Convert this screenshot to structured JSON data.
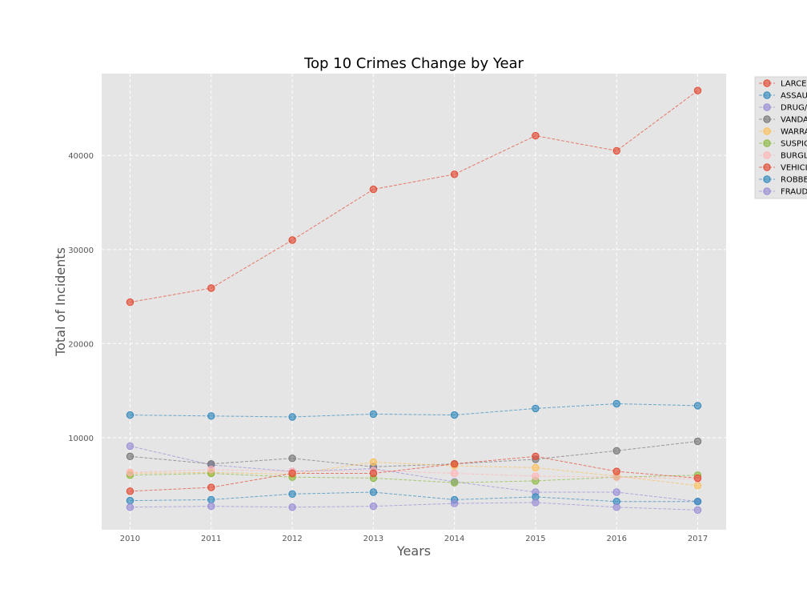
{
  "chart_data": {
    "type": "line",
    "title": "Top 10 Crimes Change by Year",
    "xlabel": "Years",
    "ylabel": "Total of Incidents",
    "x": [
      2010,
      2011,
      2012,
      2013,
      2014,
      2015,
      2016,
      2017
    ],
    "xlim": [
      2009.65,
      2017.35
    ],
    "ylim": [
      200,
      48700
    ],
    "yticks": [
      10000,
      20000,
      30000,
      40000
    ],
    "grid": true,
    "legend_position": "outside-right",
    "series": [
      {
        "name": "LARCE",
        "color": "#e24a33",
        "values": [
          24400,
          25900,
          31000,
          36400,
          38000,
          42100,
          40500,
          46900
        ]
      },
      {
        "name": "ASSAU",
        "color": "#348abd",
        "values": [
          12400,
          12300,
          12200,
          12500,
          12400,
          13100,
          13600,
          13400
        ]
      },
      {
        "name": "DRUG/",
        "color": "#988ed5",
        "values": [
          9100,
          7100,
          6400,
          6700,
          5300,
          4200,
          4200,
          3200
        ]
      },
      {
        "name": "VANDA",
        "color": "#777777",
        "values": [
          8000,
          7200,
          7800,
          6900,
          7200,
          7700,
          8600,
          9600
        ]
      },
      {
        "name": "WARRA",
        "color": "#fbc15e",
        "values": [
          6200,
          6300,
          6100,
          7400,
          7000,
          6800,
          5900,
          4900
        ]
      },
      {
        "name": "SUSPIC",
        "color": "#8eba42",
        "values": [
          6000,
          6200,
          5800,
          5700,
          5200,
          5400,
          5800,
          6000
        ]
      },
      {
        "name": "BURGL",
        "color": "#ffb5b8",
        "values": [
          6300,
          6600,
          6400,
          6500,
          6200,
          5900,
          5800,
          5600
        ]
      },
      {
        "name": "VEHICL",
        "color": "#e24a33",
        "values": [
          4300,
          4700,
          6200,
          6200,
          7200,
          8000,
          6400,
          5700
        ]
      },
      {
        "name": "ROBBE",
        "color": "#348abd",
        "values": [
          3300,
          3400,
          4000,
          4200,
          3400,
          3700,
          3200,
          3200
        ]
      },
      {
        "name": "FRAUD",
        "color": "#988ed5",
        "values": [
          2600,
          2700,
          2600,
          2700,
          3000,
          3100,
          2600,
          2300
        ]
      }
    ]
  }
}
